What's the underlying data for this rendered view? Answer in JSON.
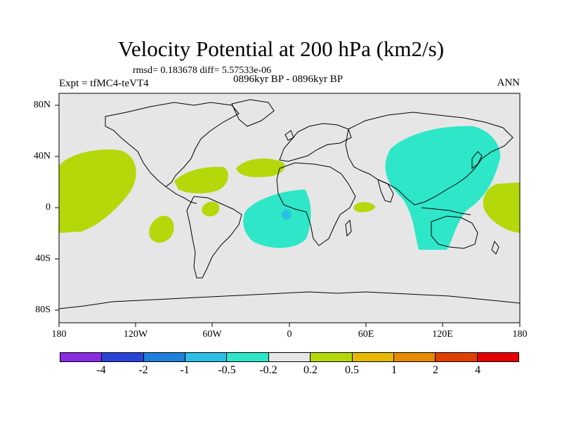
{
  "title": "Velocity Potential at 200 hPa (km2/s)",
  "stats": "rmsd= 0.183678 diff= 5.57533e-06",
  "experiment": "Expt = tfMC4-teVT4",
  "period": "0896kyr BP - 0896kyr BP",
  "season": "ANN",
  "x_ticks": [
    "180",
    "120W",
    "60W",
    "0",
    "60E",
    "120E",
    "180"
  ],
  "y_ticks": [
    "80N",
    "40N",
    "0",
    "40S",
    "80S"
  ],
  "colorbar": {
    "labels": [
      "-4",
      "-2",
      "-1",
      "-0.5",
      "-0.2",
      "0.2",
      "0.5",
      "1",
      "2",
      "4"
    ],
    "colors": [
      "#8a2be2",
      "#2845d8",
      "#1f7fdc",
      "#2bbfe6",
      "#2ee6c8",
      "#e6e6e6",
      "#b4d80a",
      "#e6b800",
      "#e68a00",
      "#e04000",
      "#e60000"
    ]
  },
  "colors": {
    "background": "#e6e6e6",
    "negative_fill": "#2ee6c8",
    "negative_core": "#2bbfe6",
    "positive_fill": "#b4d80a"
  }
}
